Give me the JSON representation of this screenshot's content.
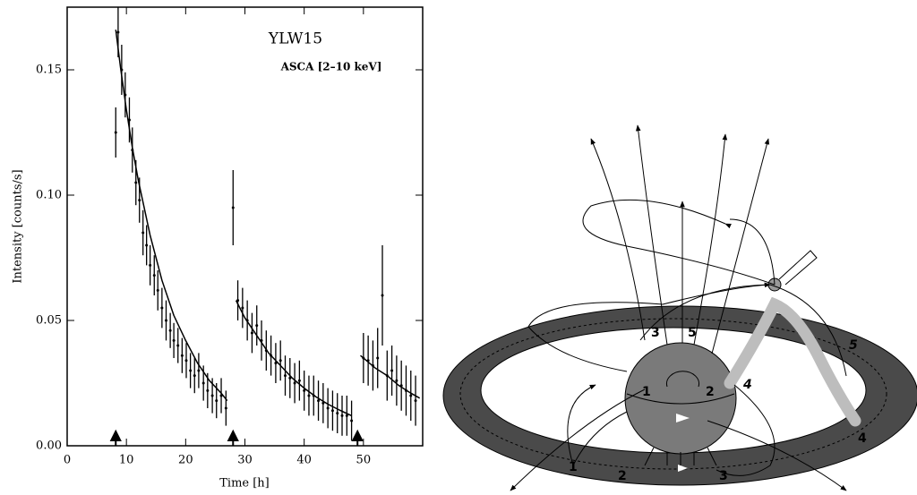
{
  "chart_data": {
    "type": "errorbar",
    "title": "YLW15",
    "subtitle": "ASCA [2–10 keV]",
    "x_label": "Time [h]",
    "y_label": "Intensity [counts/s]",
    "xlim": [
      0,
      60
    ],
    "ylim": [
      0,
      0.175
    ],
    "xticks": [
      0,
      10,
      20,
      30,
      40,
      50
    ],
    "yticks": [
      {
        "value": 0,
        "label": "0.00"
      },
      0.05,
      {
        "value": 0.1,
        "label": "0.10"
      },
      0.15
    ],
    "color": "#000000",
    "x": [
      8.2,
      8.6,
      9.2,
      9.8,
      10.5,
      11,
      11.6,
      12.2,
      12.8,
      13.4,
      14,
      14.7,
      15.3,
      16,
      16.7,
      17.4,
      18,
      18.7,
      19.4,
      20.1,
      20.8,
      21.5,
      22.2,
      23,
      23.7,
      24.5,
      25.2,
      26,
      26.8,
      28,
      28.8,
      29.6,
      30.4,
      31.2,
      32,
      32.8,
      33.6,
      34.4,
      35.2,
      36,
      36.8,
      37.6,
      38.4,
      39.2,
      40,
      40.8,
      41.6,
      42.4,
      43.2,
      44,
      44.8,
      45.6,
      46.4,
      47.2,
      48,
      50,
      50.8,
      51.6,
      52.4,
      53.2,
      54,
      54.8,
      55.6,
      56.4,
      57.2,
      58,
      58.8
    ],
    "values": [
      0.125,
      0.165,
      0.15,
      0.14,
      0.13,
      0.118,
      0.105,
      0.098,
      0.085,
      0.08,
      0.072,
      0.068,
      0.062,
      0.055,
      0.05,
      0.046,
      0.042,
      0.04,
      0.036,
      0.034,
      0.03,
      0.028,
      0.03,
      0.025,
      0.022,
      0.02,
      0.018,
      0.02,
      0.015,
      0.095,
      0.058,
      0.055,
      0.05,
      0.045,
      0.048,
      0.042,
      0.038,
      0.036,
      0.033,
      0.034,
      0.028,
      0.027,
      0.025,
      0.026,
      0.022,
      0.02,
      0.02,
      0.018,
      0.017,
      0.015,
      0.014,
      0.013,
      0.012,
      0.012,
      0.01,
      0.035,
      0.034,
      0.032,
      0.035,
      0.06,
      0.028,
      0.03,
      0.026,
      0.024,
      0.022,
      0.02,
      0.018
    ],
    "errors": [
      0.01,
      0.01,
      0.01,
      0.009,
      0.009,
      0.009,
      0.009,
      0.009,
      0.009,
      0.008,
      0.008,
      0.008,
      0.008,
      0.008,
      0.008,
      0.007,
      0.007,
      0.007,
      0.007,
      0.007,
      0.007,
      0.007,
      0.007,
      0.007,
      0.007,
      0.007,
      0.007,
      0.007,
      0.007,
      0.015,
      0.008,
      0.008,
      0.008,
      0.008,
      0.008,
      0.008,
      0.008,
      0.008,
      0.008,
      0.008,
      0.008,
      0.008,
      0.008,
      0.008,
      0.008,
      0.008,
      0.008,
      0.008,
      0.008,
      0.008,
      0.008,
      0.008,
      0.008,
      0.008,
      0.008,
      0.01,
      0.01,
      0.01,
      0.012,
      0.02,
      0.01,
      0.01,
      0.01,
      0.01,
      0.01,
      0.01,
      0.01
    ],
    "fits": [
      {
        "x": [
          8.2,
          9,
          10,
          11,
          12,
          14,
          16,
          18,
          20,
          22,
          24,
          26,
          27
        ],
        "values": [
          0.166,
          0.151,
          0.134,
          0.119,
          0.106,
          0.084,
          0.066,
          0.052,
          0.042,
          0.033,
          0.026,
          0.021,
          0.018
        ]
      },
      {
        "x": [
          28.5,
          30,
          32,
          34,
          36,
          38,
          40,
          42,
          44,
          46,
          48
        ],
        "values": [
          0.058,
          0.051,
          0.044,
          0.037,
          0.032,
          0.027,
          0.023,
          0.0195,
          0.0166,
          0.0142,
          0.012
        ]
      },
      {
        "x": [
          49.5,
          52,
          54,
          56,
          58,
          59.5
        ],
        "values": [
          0.036,
          0.031,
          0.028,
          0.024,
          0.021,
          0.019
        ]
      }
    ],
    "markers": [
      8.2,
      28,
      49
    ]
  },
  "diagram": {
    "labels": [
      "3",
      "5",
      "1",
      "2",
      "4",
      "5",
      "4",
      "1",
      "2",
      "3"
    ]
  }
}
